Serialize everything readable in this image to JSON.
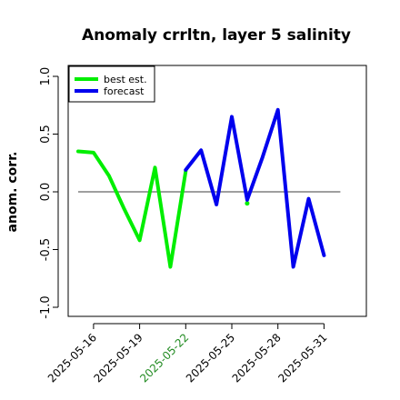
{
  "chart_data": {
    "type": "line",
    "title": "Anomaly crrltn, layer 5 salinity",
    "xlabel": "",
    "ylabel": "anom. corr.",
    "ylim": [
      -1.0,
      1.0
    ],
    "yticks": [
      "-1.0",
      "-0.5",
      "0.0",
      "0.5",
      "1.0"
    ],
    "ytick_values": [
      -1.0,
      -0.5,
      0.0,
      0.5,
      1.0
    ],
    "x": [
      "2025-05-15",
      "2025-05-16",
      "2025-05-17",
      "2025-05-18",
      "2025-05-19",
      "2025-05-20",
      "2025-05-21",
      "2025-05-22",
      "2025-05-23",
      "2025-05-24",
      "2025-05-25",
      "2025-05-26",
      "2025-05-27",
      "2025-05-28",
      "2025-05-29",
      "2025-05-30",
      "2025-05-31"
    ],
    "xticks": [
      "2025-05-16",
      "2025-05-19",
      "2025-05-22",
      "2025-05-25",
      "2025-05-28",
      "2025-05-31"
    ],
    "highlight_tick": "2025-05-22",
    "highlight_color": "#228B22",
    "reference_line": 0.0,
    "grid": false,
    "legend_position": "top-left",
    "series": [
      {
        "name": "best est.",
        "color": "#00ee00",
        "values": [
          0.35,
          0.34,
          0.14,
          -0.15,
          -0.42,
          0.21,
          -0.65,
          0.18,
          null,
          null,
          null,
          -0.1,
          null,
          null,
          null,
          null,
          null
        ]
      },
      {
        "name": "forecast",
        "color": "#0000ee",
        "values": [
          null,
          null,
          null,
          null,
          null,
          null,
          null,
          0.19,
          0.36,
          -0.11,
          0.65,
          -0.07,
          0.3,
          0.71,
          -0.65,
          -0.06,
          -0.55
        ]
      }
    ]
  }
}
